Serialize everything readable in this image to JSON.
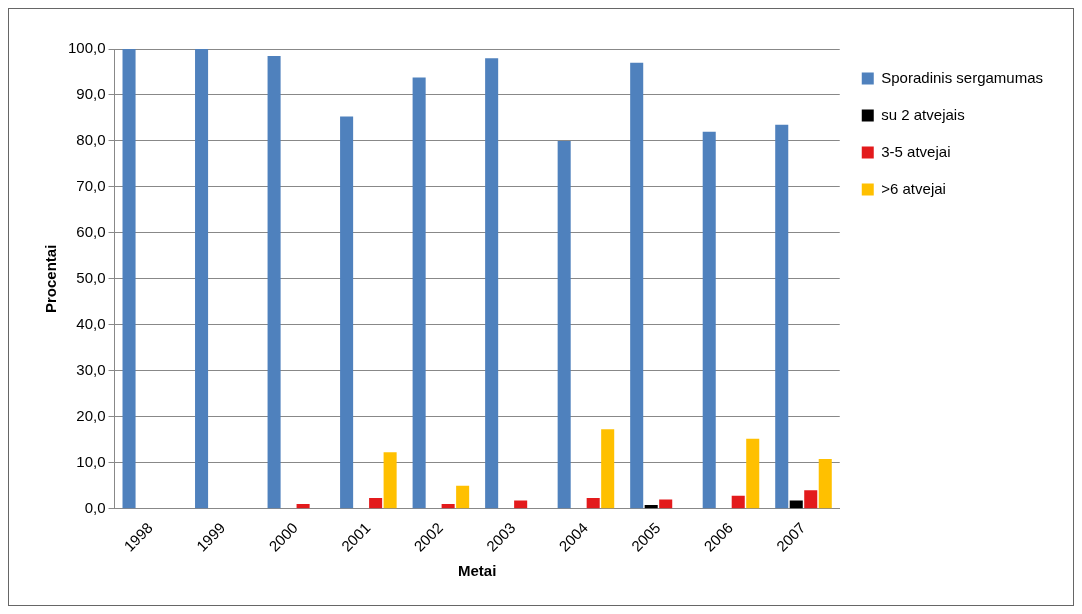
{
  "chart_data": {
    "type": "bar",
    "categories": [
      "1998",
      "1999",
      "2000",
      "2001",
      "2002",
      "2003",
      "2004",
      "2005",
      "2006",
      "2007"
    ],
    "series": [
      {
        "name": "Sporadinis sergamumas",
        "color": "#4f81bd",
        "values": [
          100,
          100,
          98.5,
          85.3,
          93.8,
          98,
          80,
          97,
          82,
          83.5
        ]
      },
      {
        "name": "su 2 atvejais",
        "color": "#000000",
        "values": [
          null,
          null,
          null,
          null,
          null,
          null,
          null,
          0.8,
          null,
          1.8
        ]
      },
      {
        "name": "3-5 atvejai",
        "color": "#e31a1c",
        "values": [
          null,
          null,
          1.0,
          2.3,
          1.0,
          1.8,
          2.3,
          2.0,
          2.8,
          4.0
        ]
      },
      {
        "name": ">6 atvejai",
        "color": "#ffc000",
        "values": [
          null,
          null,
          null,
          12.3,
          5.0,
          null,
          17.3,
          null,
          15.2,
          10.8
        ]
      }
    ],
    "xlabel": "Metai",
    "ylabel": "Procentai",
    "ylim": [
      0,
      100
    ],
    "yticks": [
      {
        "value": 0,
        "label": "0,0"
      },
      {
        "value": 10,
        "label": "10,0"
      },
      {
        "value": 20,
        "label": "20,0"
      },
      {
        "value": 30,
        "label": "30,0"
      },
      {
        "value": 40,
        "label": "40,0"
      },
      {
        "value": 50,
        "label": "50,0"
      },
      {
        "value": 60,
        "label": "60,0"
      },
      {
        "value": 70,
        "label": "70,0"
      },
      {
        "value": 80,
        "label": "80,0"
      },
      {
        "value": 90,
        "label": "90,0"
      },
      {
        "value": 100,
        "label": "100,0"
      }
    ],
    "grid": "y",
    "legend": "top right"
  }
}
